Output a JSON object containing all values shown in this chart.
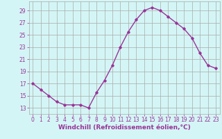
{
  "x": [
    0,
    1,
    2,
    3,
    4,
    5,
    6,
    7,
    8,
    9,
    10,
    11,
    12,
    13,
    14,
    15,
    16,
    17,
    18,
    19,
    20,
    21,
    22,
    23
  ],
  "y": [
    17,
    16,
    15,
    14,
    13.5,
    13.5,
    13.5,
    13,
    15.5,
    17.5,
    20,
    23,
    25.5,
    27.5,
    29,
    29.5,
    29,
    28,
    27,
    26,
    24.5,
    22,
    20,
    19.5
  ],
  "line_color": "#993399",
  "marker": "D",
  "marker_size": 1.8,
  "line_width": 1.0,
  "background_color": "#d4f5f5",
  "grid_color": "#aaaaaa",
  "xlabel": "Windchill (Refroidissement éolien,°C)",
  "xlabel_color": "#993399",
  "xlabel_fontsize": 6.5,
  "ytick_values": [
    13,
    15,
    17,
    19,
    21,
    23,
    25,
    27,
    29
  ],
  "xtick_values": [
    0,
    1,
    2,
    3,
    4,
    5,
    6,
    7,
    8,
    9,
    10,
    11,
    12,
    13,
    14,
    15,
    16,
    17,
    18,
    19,
    20,
    21,
    22,
    23
  ],
  "ylim": [
    12.0,
    30.5
  ],
  "xlim": [
    -0.5,
    23.5
  ],
  "tick_color": "#993399",
  "tick_fontsize": 5.5,
  "axis_label_color": "#993399"
}
